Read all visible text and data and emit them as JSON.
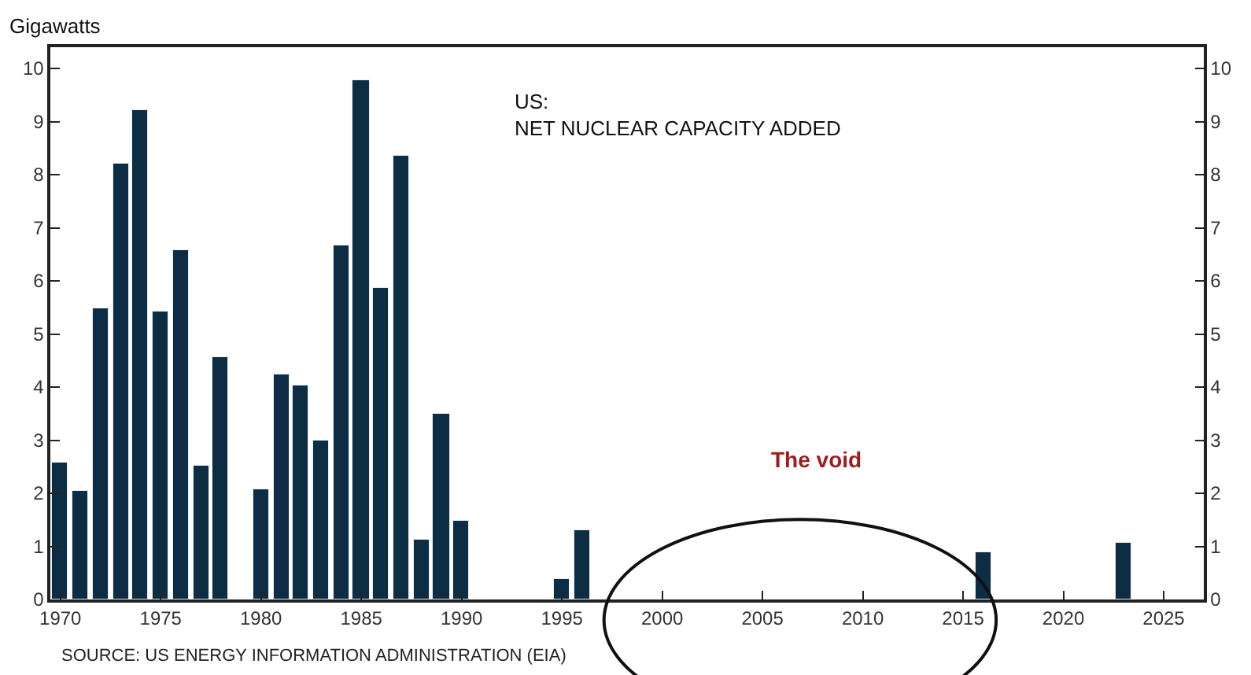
{
  "chart_data": {
    "type": "bar",
    "title": "US:\nNET NUCLEAR CAPACITY ADDED",
    "ylabel": "Gigawatts",
    "x": [
      1970,
      1971,
      1972,
      1973,
      1974,
      1975,
      1976,
      1977,
      1978,
      1980,
      1981,
      1982,
      1983,
      1984,
      1985,
      1986,
      1987,
      1988,
      1989,
      1990,
      1995,
      1996,
      2016,
      2023
    ],
    "series": [
      {
        "color": "#0d2d44",
        "values": [
          2.59,
          2.03,
          5.47,
          8.22,
          9.21,
          5.42,
          6.58,
          2.51,
          4.55,
          2.08,
          4.25,
          4.02,
          3.0,
          6.68,
          9.79,
          5.87,
          8.37,
          1.14,
          3.49,
          1.48,
          0.39,
          1.29,
          0.88,
          1.07
        ]
      }
    ],
    "xlim": [
      1969.5,
      2027
    ],
    "xticks": [
      1970,
      1975,
      1980,
      1985,
      1990,
      1995,
      2000,
      2005,
      2010,
      2015,
      2020,
      2025
    ],
    "ylim": [
      0,
      10.4
    ],
    "yticks": [
      0,
      1,
      2,
      3,
      4,
      5,
      6,
      7,
      8,
      9,
      10
    ],
    "y2lim": [
      0,
      10.4
    ],
    "y2ticks": [
      0,
      1,
      2,
      3,
      4,
      5,
      6,
      7,
      8,
      9,
      10
    ],
    "annotations": [
      "The void",
      "SOURCE: US ENERGY INFORMATION ADMINISTRATION (EIA)"
    ]
  }
}
